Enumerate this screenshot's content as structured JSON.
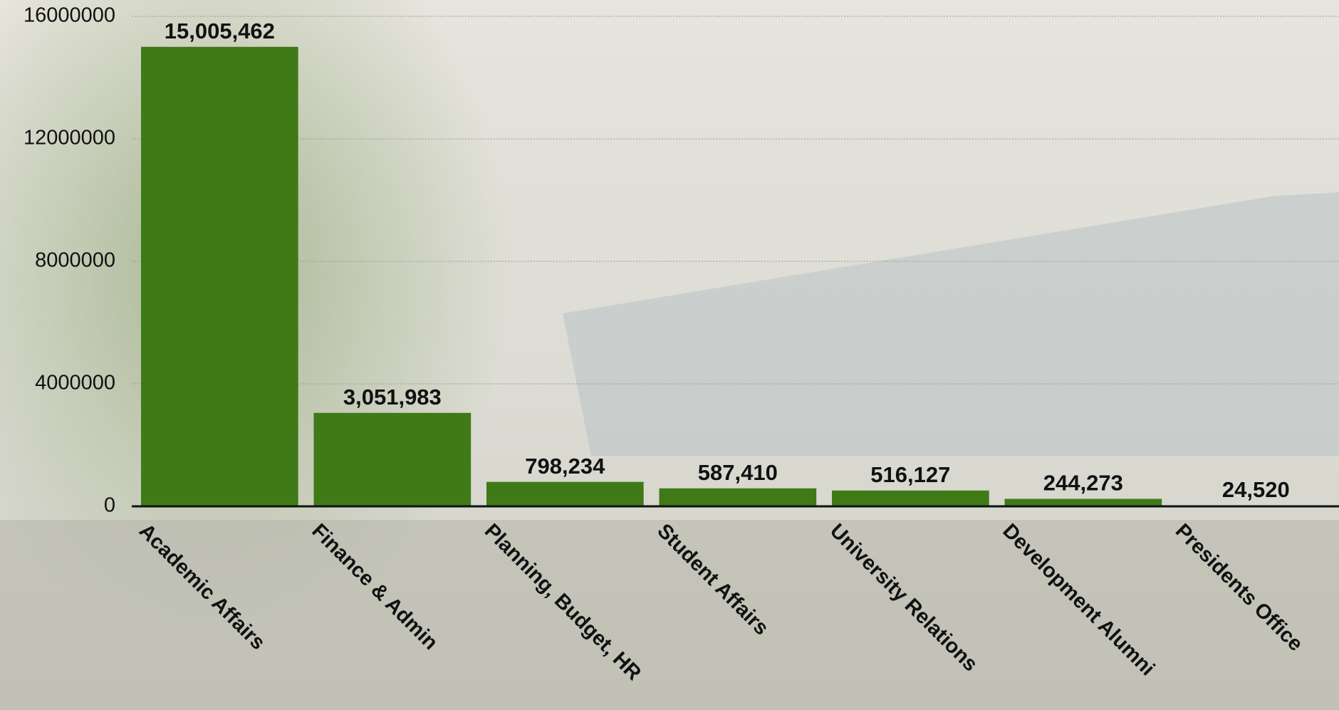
{
  "chart_data": {
    "type": "bar",
    "categories": [
      "Academic Affairs",
      "Finance & Admin",
      "Planning, Budget, HR",
      "Student Affairs",
      "University Relations",
      "Development Alumni",
      "Presidents Office"
    ],
    "values": [
      15005462,
      3051983,
      798234,
      587410,
      516127,
      244273,
      24520
    ],
    "value_labels": [
      "15,005,462",
      "3,051,983",
      "798,234",
      "587,410",
      "516,127",
      "244,273",
      "24,520"
    ],
    "color": "#3f7a16",
    "ylim": [
      0,
      16000000
    ],
    "yticks": [
      0,
      4000000,
      8000000,
      12000000,
      16000000
    ],
    "grid": true
  }
}
